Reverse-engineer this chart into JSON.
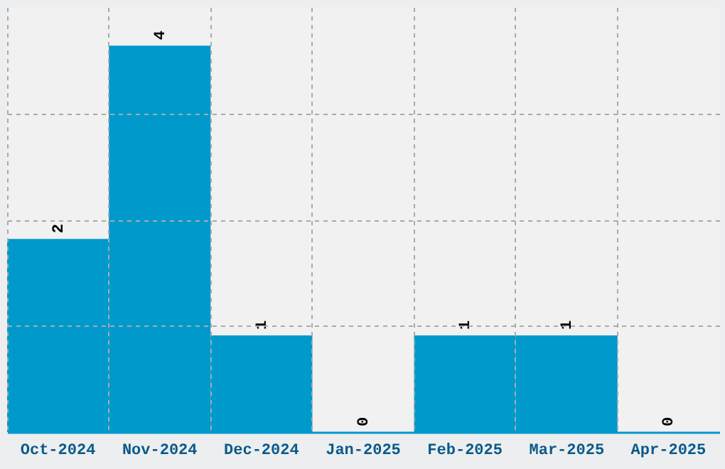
{
  "chart_data": {
    "type": "bar",
    "categories": [
      "Oct-2024",
      "Nov-2024",
      "Dec-2024",
      "Jan-2025",
      "Feb-2025",
      "Mar-2025",
      "Apr-2025"
    ],
    "values": [
      2,
      4,
      1,
      0,
      1,
      1,
      0
    ],
    "color": "#0099cc",
    "data_labels": true,
    "grid": true,
    "tick_labels": "x",
    "ylim": [
      0,
      4.4
    ],
    "yticks": [
      {
        "value": 1.1,
        "label": null
      },
      {
        "value": 2.2,
        "label": null
      },
      {
        "value": 3.3,
        "label": null
      }
    ]
  }
}
